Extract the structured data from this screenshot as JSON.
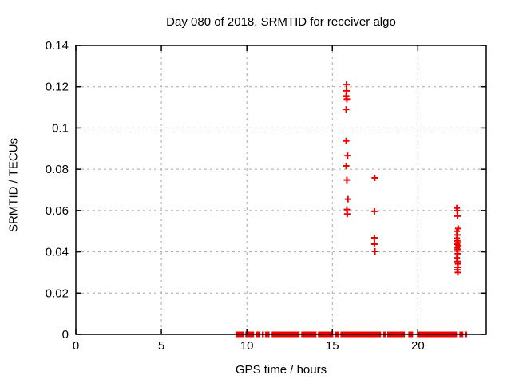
{
  "chart_data": {
    "type": "scatter",
    "title": "Day 080 of 2018, SRMTID for receiver algo",
    "xlabel": "GPS time / hours",
    "ylabel": "SRMTID / TECUs",
    "xlim": [
      0,
      24
    ],
    "ylim": [
      0,
      0.14
    ],
    "xticks": [
      {
        "v": 0,
        "label": "0"
      },
      {
        "v": 5,
        "label": "5"
      },
      {
        "v": 10,
        "label": "10"
      },
      {
        "v": 15,
        "label": "15"
      },
      {
        "v": 20,
        "label": "20"
      }
    ],
    "yticks": [
      {
        "v": 0,
        "label": "0"
      },
      {
        "v": 0.02,
        "label": "0.02"
      },
      {
        "v": 0.04,
        "label": "0.04"
      },
      {
        "v": 0.06,
        "label": "0.06"
      },
      {
        "v": 0.08,
        "label": "0.08"
      },
      {
        "v": 0.1,
        "label": "0.1"
      },
      {
        "v": 0.12,
        "label": "0.12"
      },
      {
        "v": 0.14,
        "label": "0.14"
      }
    ],
    "grid": true,
    "legend": "none",
    "marker": "plus",
    "colors": {
      "marker": "#ee0000",
      "grid": "#a8a8a8",
      "axis": "#000000",
      "text": "#000000",
      "background": "#ffffff"
    },
    "series": [
      {
        "name": "SRMTID",
        "points": [
          [
            15.83,
            0.121
          ],
          [
            15.83,
            0.118
          ],
          [
            15.81,
            0.1155
          ],
          [
            15.85,
            0.114
          ],
          [
            15.81,
            0.109
          ],
          [
            15.81,
            0.0937
          ],
          [
            15.89,
            0.0866
          ],
          [
            15.81,
            0.0816
          ],
          [
            15.85,
            0.0748
          ],
          [
            15.91,
            0.0655
          ],
          [
            15.85,
            0.0605
          ],
          [
            15.87,
            0.0583
          ],
          [
            17.48,
            0.0758
          ],
          [
            17.46,
            0.0596
          ],
          [
            17.46,
            0.0468
          ],
          [
            17.46,
            0.0437
          ],
          [
            17.49,
            0.0402
          ],
          [
            22.28,
            0.0612
          ],
          [
            22.3,
            0.06
          ],
          [
            22.32,
            0.0573
          ],
          [
            22.36,
            0.0513
          ],
          [
            22.28,
            0.05
          ],
          [
            22.32,
            0.0482
          ],
          [
            22.28,
            0.0466
          ],
          [
            22.31,
            0.0453
          ],
          [
            22.35,
            0.0444
          ],
          [
            22.29,
            0.0437
          ],
          [
            22.37,
            0.043
          ],
          [
            22.28,
            0.0421
          ],
          [
            22.33,
            0.0413
          ],
          [
            22.3,
            0.0404
          ],
          [
            22.33,
            0.0391
          ],
          [
            22.28,
            0.0371
          ],
          [
            22.32,
            0.0353
          ],
          [
            22.35,
            0.0342
          ],
          [
            22.33,
            0.0325
          ],
          [
            22.31,
            0.0313
          ],
          [
            22.34,
            0.03
          ]
        ]
      }
    ],
    "zero_line_segments_hours": [
      [
        9.34,
        9.81
      ],
      [
        9.91,
        10.42
      ],
      [
        10.51,
        10.79
      ],
      [
        10.88,
        10.98
      ],
      [
        11.07,
        11.12
      ],
      [
        11.21,
        11.31
      ],
      [
        11.45,
        13.08
      ],
      [
        13.18,
        14.07
      ],
      [
        14.16,
        15.05
      ],
      [
        15.14,
        15.37
      ],
      [
        15.47,
        17.85
      ],
      [
        17.97,
        18.12
      ],
      [
        18.21,
        19.24
      ],
      [
        19.44,
        19.72
      ],
      [
        19.95,
        22.29
      ],
      [
        22.43,
        22.66
      ],
      [
        22.76,
        22.85
      ]
    ]
  }
}
